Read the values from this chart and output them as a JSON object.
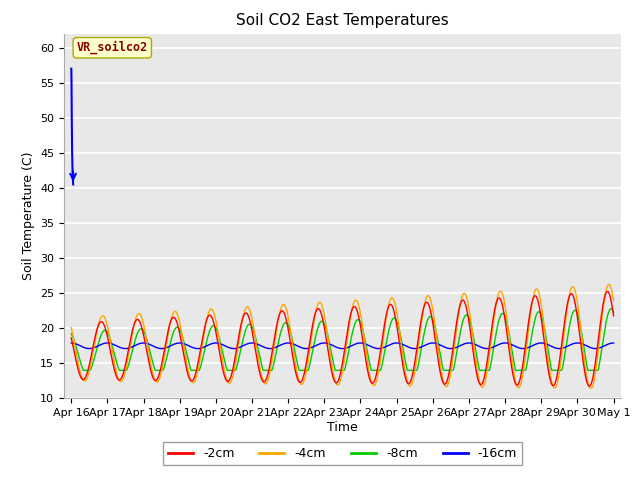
{
  "title": "Soil CO2 East Temperatures",
  "xlabel": "Time",
  "ylabel": "Soil Temperature (C)",
  "ylim": [
    10,
    62
  ],
  "yticks": [
    10,
    15,
    20,
    25,
    30,
    35,
    40,
    45,
    50,
    55,
    60
  ],
  "bg_color": "#e8e8e8",
  "grid_color": "#ffffff",
  "annotation_label": "VR_soilco2",
  "annotation_box_color": "#ffffcc",
  "annotation_text_color": "#8b0000",
  "colors": {
    "-2cm": "#ff0000",
    "-4cm": "#ffa500",
    "-8cm": "#00cc00",
    "-16cm": "#0000ff"
  },
  "legend_labels": [
    "-2cm",
    "-4cm",
    "-8cm",
    "-16cm"
  ],
  "xtick_labels": [
    "Apr 16",
    "Apr 17",
    "Apr 18",
    "Apr 19",
    "Apr 20",
    "Apr 21",
    "Apr 22",
    "Apr 23",
    "Apr 24",
    "Apr 25",
    "Apr 26",
    "Apr 27",
    "Apr 28",
    "Apr 29",
    "Apr 30",
    "May 1"
  ]
}
